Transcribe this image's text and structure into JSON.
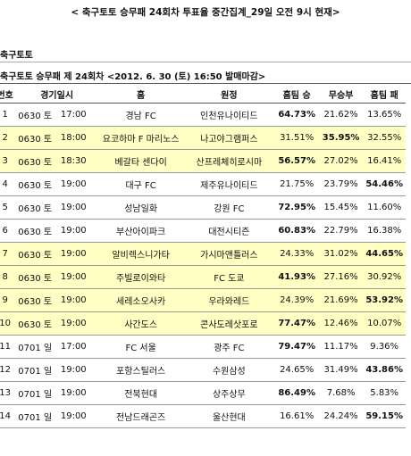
{
  "header": {
    "title": "< 축구토토 승무패 24회차 투표율 중간집계_29일 오전 9시 현재>"
  },
  "section": "축구토토",
  "subtitle": "축구토토 승무패 제 24회차 <2012. 6. 30 (토) 16:50 발매마감>",
  "table": {
    "columns": [
      "번호",
      "경기일시",
      "홈",
      "원정",
      "홈팀 승",
      "무승부",
      "홈팀 패"
    ],
    "rows": [
      {
        "cells": [
          "1",
          "0630 토",
          "17:00",
          "경남 FC",
          "인천유나이티드",
          "64.73%",
          "21.62%",
          "13.65%"
        ],
        "shaded": false
      },
      {
        "cells": [
          "2",
          "0630 토",
          "18:00",
          "요코하마 F 마리노스",
          "나고야그램퍼스",
          "31.51%",
          "35.95%",
          "32.55%"
        ],
        "shaded": true
      },
      {
        "cells": [
          "3",
          "0630 토",
          "18:30",
          "베갈타 센다이",
          "산프레체히로시마",
          "56.57%",
          "27.02%",
          "16.41%"
        ],
        "shaded": true
      },
      {
        "cells": [
          "4",
          "0630 토",
          "19:00",
          "대구 FC",
          "제주유나이티드",
          "21.75%",
          "23.79%",
          "54.46%"
        ],
        "shaded": false
      },
      {
        "cells": [
          "5",
          "0630 토",
          "19:00",
          "성남일화",
          "강원 FC",
          "72.95%",
          "15.45%",
          "11.60%"
        ],
        "shaded": false
      },
      {
        "cells": [
          "6",
          "0630 토",
          "19:00",
          "부산아이파크",
          "대전시티즌",
          "60.83%",
          "22.79%",
          "16.38%"
        ],
        "shaded": false
      },
      {
        "cells": [
          "7",
          "0630 토",
          "19:00",
          "알비렉스니가타",
          "가시마앤틀러스",
          "24.33%",
          "31.02%",
          "44.65%"
        ],
        "shaded": true
      },
      {
        "cells": [
          "8",
          "0630 토",
          "19:00",
          "주빌로이와타",
          "FC 도쿄",
          "41.93%",
          "27.16%",
          "30.92%"
        ],
        "shaded": true
      },
      {
        "cells": [
          "9",
          "0630 토",
          "19:00",
          "세레소오사카",
          "우라와레드",
          "24.39%",
          "21.69%",
          "53.92%"
        ],
        "shaded": true
      },
      {
        "cells": [
          "10",
          "0630 토",
          "19:00",
          "사간도스",
          "콘사도레삿포로",
          "77.47%",
          "12.46%",
          "10.07%"
        ],
        "shaded": true
      },
      {
        "cells": [
          "11",
          "0701 일",
          "17:00",
          "FC 서울",
          "광주 FC",
          "79.47%",
          "11.17%",
          "9.36%"
        ],
        "shaded": false
      },
      {
        "cells": [
          "12",
          "0701 일",
          "19:00",
          "포항스틸러스",
          "수원삼성",
          "24.65%",
          "31.49%",
          "43.86%"
        ],
        "shaded": false
      },
      {
        "cells": [
          "13",
          "0701 일",
          "19:00",
          "전북현대",
          "상주상무",
          "86.49%",
          "7.68%",
          "5.83%"
        ],
        "shaded": false
      },
      {
        "cells": [
          "14",
          "0701 일",
          "19:00",
          "전남드래곤즈",
          "울산현대",
          "16.61%",
          "24.24%",
          "59.15%"
        ],
        "shaded": false
      }
    ]
  }
}
